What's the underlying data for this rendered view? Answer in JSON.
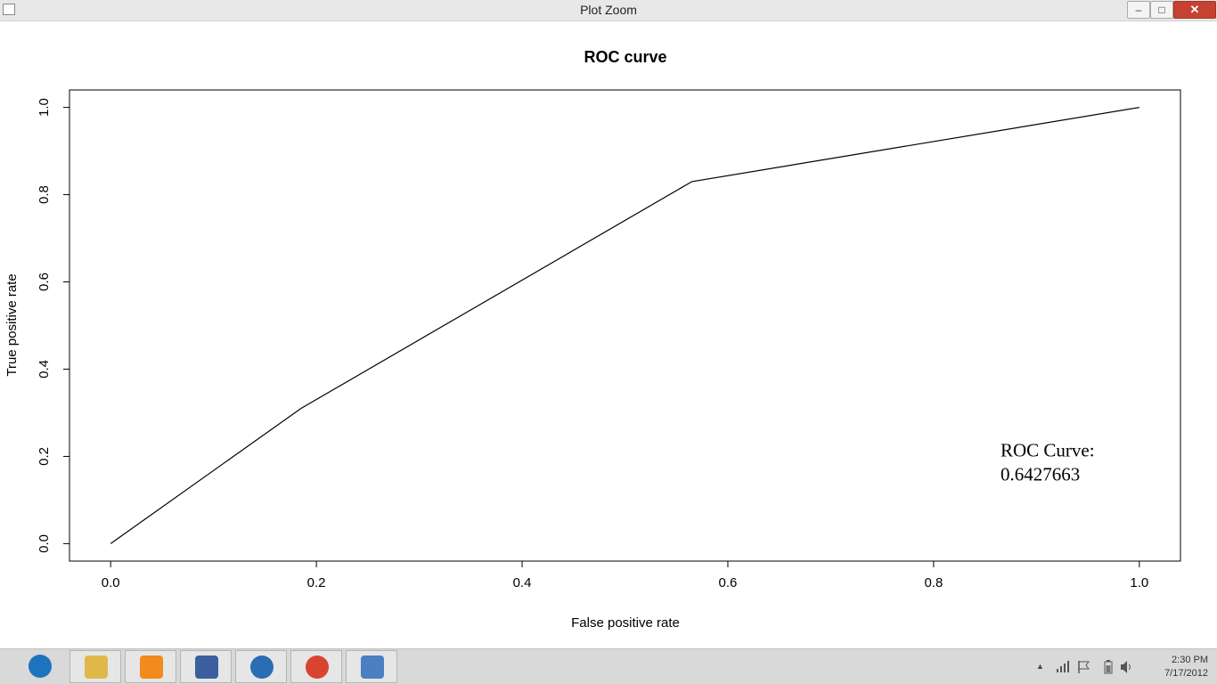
{
  "window": {
    "title": "Plot Zoom",
    "min_glyph": "–",
    "max_glyph": "□",
    "close_glyph": "✕"
  },
  "chart_data": {
    "type": "line",
    "title": "ROC curve",
    "xlabel": "False positive rate",
    "ylabel": "True positive rate",
    "xlim": [
      -0.04,
      1.04
    ],
    "ylim": [
      -0.04,
      1.04
    ],
    "xticks": [
      "0.0",
      "0.2",
      "0.4",
      "0.6",
      "0.8",
      "1.0"
    ],
    "yticks": [
      "0.0",
      "0.2",
      "0.4",
      "0.6",
      "0.8",
      "1.0"
    ],
    "grid": false,
    "series": [
      {
        "x": [
          0.0,
          0.185,
          0.565,
          1.0
        ],
        "y": [
          0.0,
          0.31,
          0.83,
          1.0
        ]
      }
    ],
    "annotations": [
      {
        "text": "ROC Curve:",
        "x": 0.865,
        "y": 0.2
      },
      {
        "text": "0.6427663",
        "x": 0.865,
        "y": 0.145
      }
    ]
  },
  "taskbar": {
    "pinned": [
      {
        "name": "taskbar-ie",
        "icon": "internet-explorer-icon",
        "color": "#1e73be"
      },
      {
        "name": "taskbar-explorer",
        "icon": "folder-icon",
        "color": "#e0b84a"
      },
      {
        "name": "taskbar-media",
        "icon": "media-player-icon",
        "color": "#f28a1d"
      },
      {
        "name": "taskbar-virtualbox",
        "icon": "virtualbox-icon",
        "color": "#3b5f9e"
      },
      {
        "name": "taskbar-r",
        "icon": "r-icon",
        "color": "#2a6db5"
      },
      {
        "name": "taskbar-chrome",
        "icon": "chrome-icon",
        "color": "#d94431"
      },
      {
        "name": "taskbar-app",
        "icon": "document-app-icon",
        "color": "#4a7fc1"
      }
    ],
    "tray": {
      "chevron": "▲",
      "time": "2:30 PM",
      "date": "7/17/2012"
    }
  }
}
